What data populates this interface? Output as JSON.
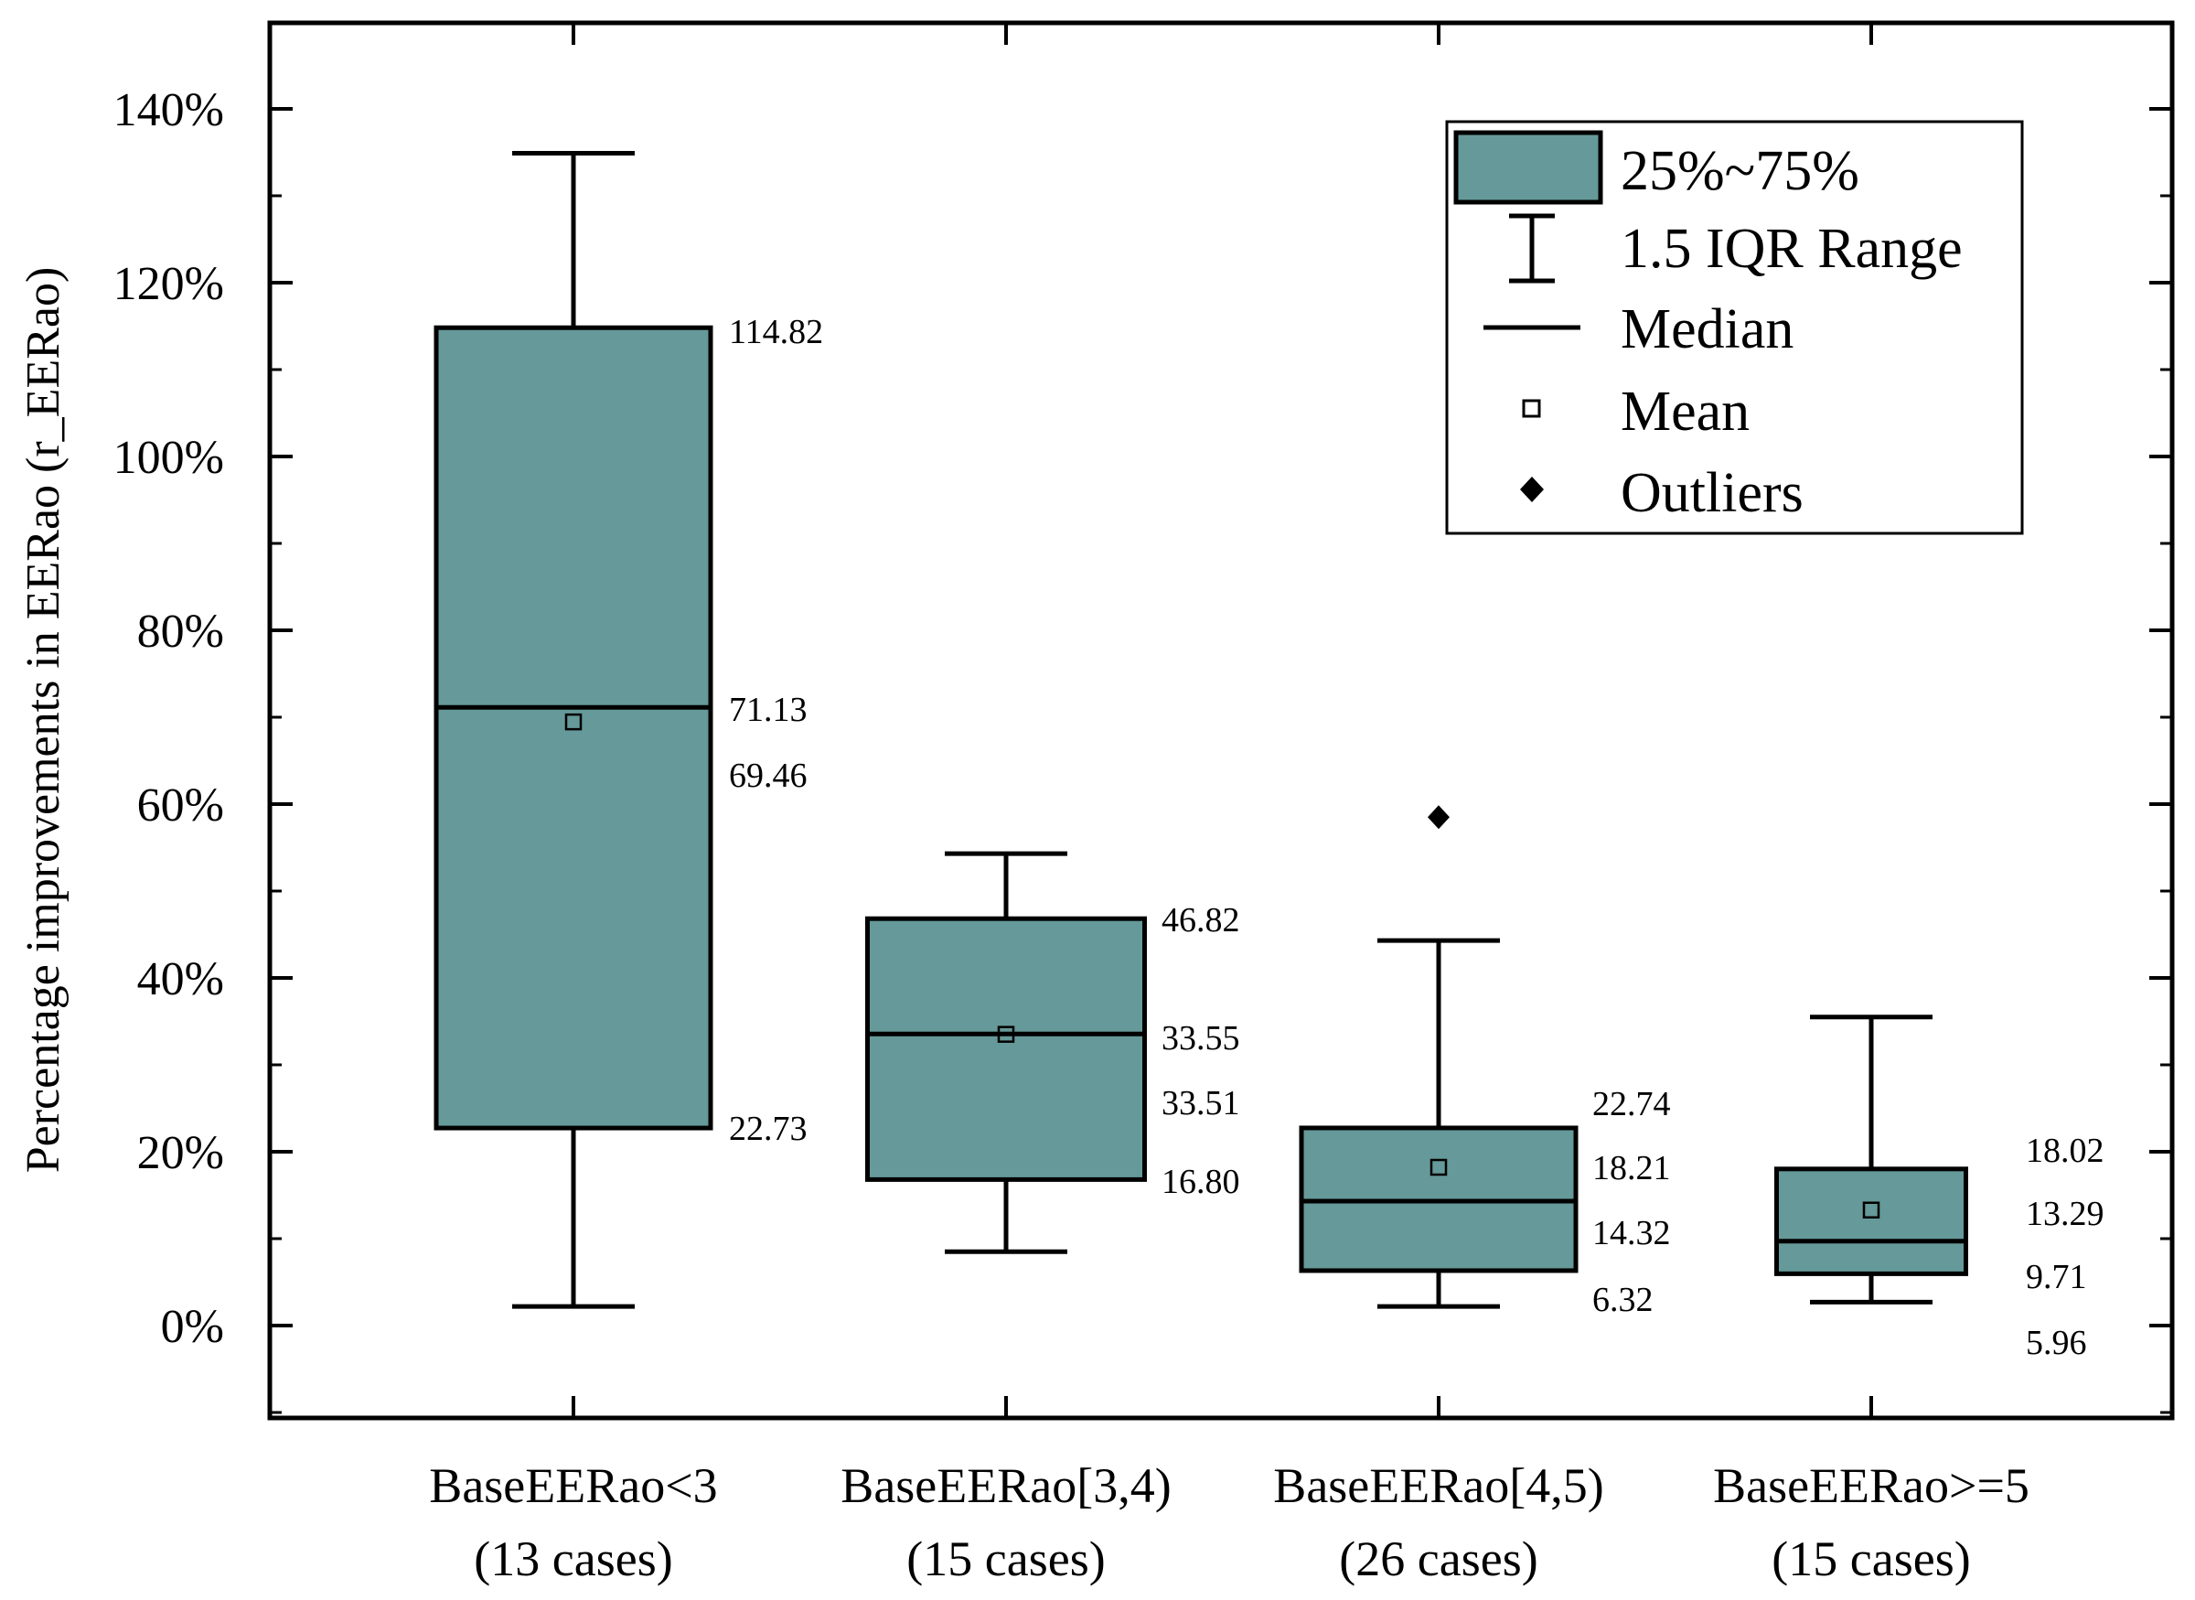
{
  "chart_data": {
    "type": "box",
    "title": "",
    "ylabel": "Percentage improvements in EERao (r_EERao)",
    "xlabel": "",
    "ylim": [
      -10,
      150
    ],
    "yticks": [
      0,
      20,
      40,
      60,
      80,
      100,
      120,
      140
    ],
    "ytick_labels": [
      "0%",
      "20%",
      "40%",
      "60%",
      "80%",
      "100%",
      "120%",
      "140%"
    ],
    "box_color": "#669999",
    "groups": [
      {
        "name": "BaseEERao<3",
        "cases": "(13 cases)",
        "whisker_low": 2.2,
        "q1": 22.73,
        "median": 71.13,
        "mean": 69.46,
        "q3": 114.82,
        "whisker_high": 134.9,
        "outliers": [],
        "annotations": {
          "q3": "114.82",
          "median": "71.13",
          "mean": "69.46",
          "q1": "22.73"
        }
      },
      {
        "name": "BaseEERao[3,4)",
        "cases": "(15 cases)",
        "whisker_low": 8.5,
        "q1": 16.8,
        "median": 33.55,
        "mean": 33.51,
        "q3": 46.82,
        "whisker_high": 54.3,
        "outliers": [],
        "annotations": {
          "q3": "46.82",
          "median": "33.55",
          "mean": "33.51",
          "q1": "16.80"
        }
      },
      {
        "name": "BaseEERao[4,5)",
        "cases": "(26 cases)",
        "whisker_low": 2.2,
        "q1": 6.32,
        "median": 14.32,
        "mean": 18.21,
        "q3": 22.74,
        "whisker_high": 44.3,
        "outliers": [
          58.5
        ],
        "annotations": {
          "q3": "22.74",
          "mean": "18.21",
          "median": "14.32",
          "q1": "6.32"
        }
      },
      {
        "name": "BaseEERao>=5",
        "cases": "(15 cases)",
        "whisker_low": 2.7,
        "q1": 5.96,
        "median": 9.71,
        "mean": 13.29,
        "q3": 18.02,
        "whisker_high": 35.5,
        "outliers": [],
        "annotations": {
          "q3": "18.02",
          "mean": "13.29",
          "median": "9.71",
          "q1": "5.96"
        }
      }
    ],
    "legend": {
      "position": "top-right",
      "box_label": "25%~75%",
      "whisker_label": "1.5 IQR Range",
      "median_label": "Median",
      "mean_label": "Mean",
      "outlier_label": "Outliers"
    }
  }
}
